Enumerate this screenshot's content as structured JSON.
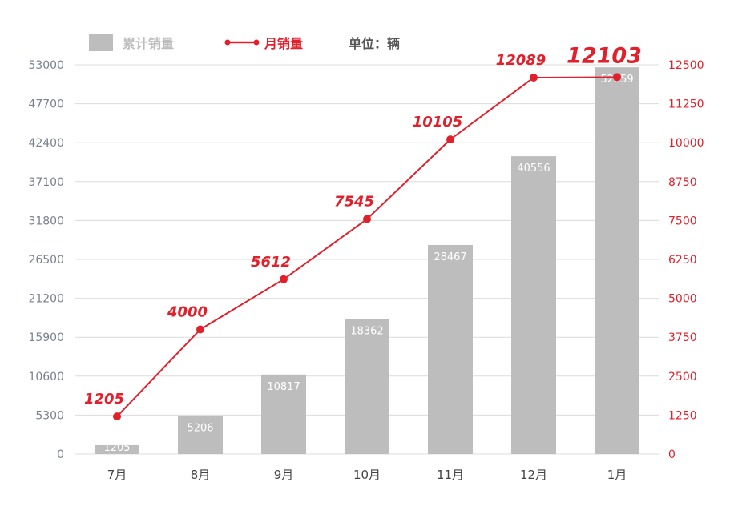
{
  "legend": {
    "bar_label": "累计销量",
    "line_label": "月销量",
    "unit_label": "单位：辆"
  },
  "colors": {
    "bar": "#bdbdbd",
    "line": "#e1202b",
    "grid": "#dcdcdc",
    "left_axis_text": "#7a8190",
    "right_axis_text": "#e1202b",
    "category_text": "#444444"
  },
  "chart_data": {
    "type": "bar",
    "categories": [
      "7月",
      "8月",
      "9月",
      "10月",
      "11月",
      "12月",
      "1月"
    ],
    "series": [
      {
        "name": "累计销量",
        "type": "bar",
        "axis": "left",
        "values": [
          1205,
          5206,
          10817,
          18362,
          28467,
          40556,
          52659
        ],
        "labels": [
          "1205",
          "5206",
          "10817",
          "18362",
          "28467",
          "40556",
          "52659"
        ]
      },
      {
        "name": "月销量",
        "type": "line",
        "axis": "right",
        "values": [
          1205,
          4000,
          5612,
          7545,
          10105,
          12089,
          12103
        ],
        "labels": [
          "1205",
          "4000",
          "5612",
          "7545",
          "10105",
          "12089",
          "12103"
        ]
      }
    ],
    "y_left": {
      "ticks": [
        0,
        5300,
        10600,
        15900,
        21200,
        26500,
        31800,
        37100,
        42400,
        47700,
        53000
      ],
      "ylim": [
        0,
        53000
      ]
    },
    "y_right": {
      "ticks": [
        0,
        1250,
        2500,
        3750,
        5000,
        6250,
        7500,
        8750,
        10000,
        11250,
        12500
      ],
      "ylim": [
        0,
        12500
      ]
    },
    "grid": true,
    "legend_position": "top-left"
  }
}
